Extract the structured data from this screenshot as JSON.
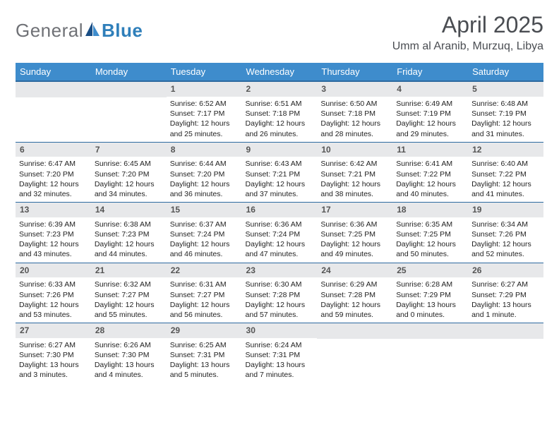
{
  "brand": {
    "general": "General",
    "blue": "Blue"
  },
  "colors": {
    "header_bg": "#3e8ccc",
    "header_text": "#ffffff",
    "row_border": "#2d6aa0",
    "daynum_bg": "#e7e8ea",
    "daynum_text": "#555555",
    "title_text": "#4a4d52",
    "logo_grey": "#6f7176",
    "logo_blue": "#2f7fba",
    "sail_dark": "#1a4e85",
    "sail_light": "#3e8ccc"
  },
  "title": "April 2025",
  "subtitle": "Umm al Aranib, Murzuq, Libya",
  "day_headers": [
    "Sunday",
    "Monday",
    "Tuesday",
    "Wednesday",
    "Thursday",
    "Friday",
    "Saturday"
  ],
  "labels": {
    "sunrise": "Sunrise:",
    "sunset": "Sunset:",
    "daylight": "Daylight:"
  },
  "weeks": [
    [
      null,
      null,
      {
        "n": "1",
        "sr": "6:52 AM",
        "ss": "7:17 PM",
        "dl": "12 hours and 25 minutes."
      },
      {
        "n": "2",
        "sr": "6:51 AM",
        "ss": "7:18 PM",
        "dl": "12 hours and 26 minutes."
      },
      {
        "n": "3",
        "sr": "6:50 AM",
        "ss": "7:18 PM",
        "dl": "12 hours and 28 minutes."
      },
      {
        "n": "4",
        "sr": "6:49 AM",
        "ss": "7:19 PM",
        "dl": "12 hours and 29 minutes."
      },
      {
        "n": "5",
        "sr": "6:48 AM",
        "ss": "7:19 PM",
        "dl": "12 hours and 31 minutes."
      }
    ],
    [
      {
        "n": "6",
        "sr": "6:47 AM",
        "ss": "7:20 PM",
        "dl": "12 hours and 32 minutes."
      },
      {
        "n": "7",
        "sr": "6:45 AM",
        "ss": "7:20 PM",
        "dl": "12 hours and 34 minutes."
      },
      {
        "n": "8",
        "sr": "6:44 AM",
        "ss": "7:20 PM",
        "dl": "12 hours and 36 minutes."
      },
      {
        "n": "9",
        "sr": "6:43 AM",
        "ss": "7:21 PM",
        "dl": "12 hours and 37 minutes."
      },
      {
        "n": "10",
        "sr": "6:42 AM",
        "ss": "7:21 PM",
        "dl": "12 hours and 38 minutes."
      },
      {
        "n": "11",
        "sr": "6:41 AM",
        "ss": "7:22 PM",
        "dl": "12 hours and 40 minutes."
      },
      {
        "n": "12",
        "sr": "6:40 AM",
        "ss": "7:22 PM",
        "dl": "12 hours and 41 minutes."
      }
    ],
    [
      {
        "n": "13",
        "sr": "6:39 AM",
        "ss": "7:23 PM",
        "dl": "12 hours and 43 minutes."
      },
      {
        "n": "14",
        "sr": "6:38 AM",
        "ss": "7:23 PM",
        "dl": "12 hours and 44 minutes."
      },
      {
        "n": "15",
        "sr": "6:37 AM",
        "ss": "7:24 PM",
        "dl": "12 hours and 46 minutes."
      },
      {
        "n": "16",
        "sr": "6:36 AM",
        "ss": "7:24 PM",
        "dl": "12 hours and 47 minutes."
      },
      {
        "n": "17",
        "sr": "6:36 AM",
        "ss": "7:25 PM",
        "dl": "12 hours and 49 minutes."
      },
      {
        "n": "18",
        "sr": "6:35 AM",
        "ss": "7:25 PM",
        "dl": "12 hours and 50 minutes."
      },
      {
        "n": "19",
        "sr": "6:34 AM",
        "ss": "7:26 PM",
        "dl": "12 hours and 52 minutes."
      }
    ],
    [
      {
        "n": "20",
        "sr": "6:33 AM",
        "ss": "7:26 PM",
        "dl": "12 hours and 53 minutes."
      },
      {
        "n": "21",
        "sr": "6:32 AM",
        "ss": "7:27 PM",
        "dl": "12 hours and 55 minutes."
      },
      {
        "n": "22",
        "sr": "6:31 AM",
        "ss": "7:27 PM",
        "dl": "12 hours and 56 minutes."
      },
      {
        "n": "23",
        "sr": "6:30 AM",
        "ss": "7:28 PM",
        "dl": "12 hours and 57 minutes."
      },
      {
        "n": "24",
        "sr": "6:29 AM",
        "ss": "7:28 PM",
        "dl": "12 hours and 59 minutes."
      },
      {
        "n": "25",
        "sr": "6:28 AM",
        "ss": "7:29 PM",
        "dl": "13 hours and 0 minutes."
      },
      {
        "n": "26",
        "sr": "6:27 AM",
        "ss": "7:29 PM",
        "dl": "13 hours and 1 minute."
      }
    ],
    [
      {
        "n": "27",
        "sr": "6:27 AM",
        "ss": "7:30 PM",
        "dl": "13 hours and 3 minutes."
      },
      {
        "n": "28",
        "sr": "6:26 AM",
        "ss": "7:30 PM",
        "dl": "13 hours and 4 minutes."
      },
      {
        "n": "29",
        "sr": "6:25 AM",
        "ss": "7:31 PM",
        "dl": "13 hours and 5 minutes."
      },
      {
        "n": "30",
        "sr": "6:24 AM",
        "ss": "7:31 PM",
        "dl": "13 hours and 7 minutes."
      },
      null,
      null,
      null
    ]
  ]
}
